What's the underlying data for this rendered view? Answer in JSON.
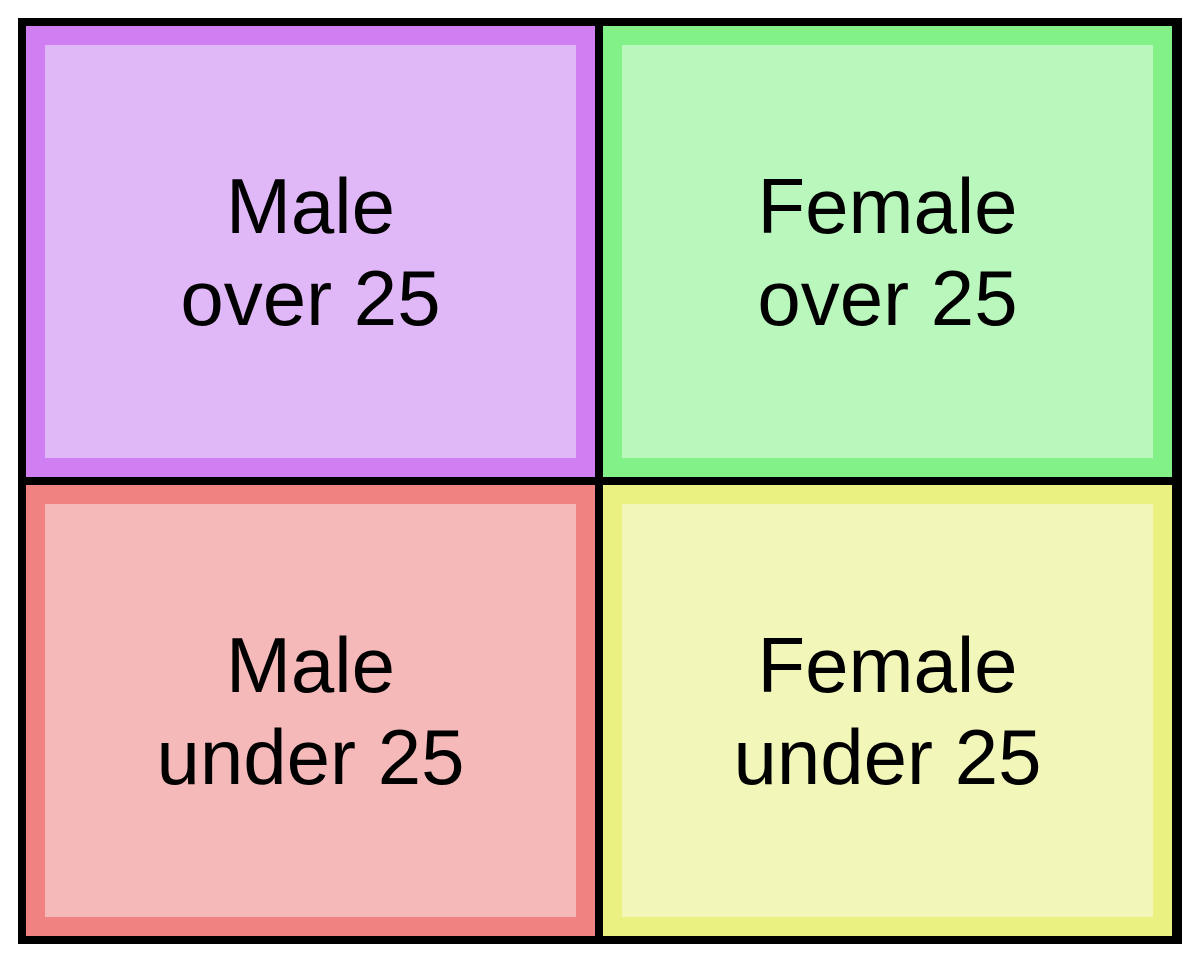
{
  "quadrants": {
    "male_over_25": {
      "line1": "Male",
      "line2": "over 25",
      "fill_color": "#e1b8f7",
      "border_color": "#d07ff2"
    },
    "female_over_25": {
      "line1": "Female",
      "line2": "over 25",
      "fill_color": "#b9f7bd",
      "border_color": "#82f187"
    },
    "male_under_25": {
      "line1": "Male",
      "line2": "under 25",
      "fill_color": "#f5b9b9",
      "border_color": "#f18282"
    },
    "female_under_25": {
      "line1": "Female",
      "line2": "under 25",
      "fill_color": "#f2f6b9",
      "border_color": "#ebf181"
    }
  }
}
